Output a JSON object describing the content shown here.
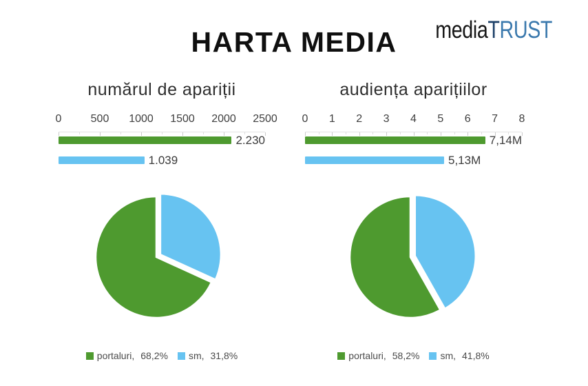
{
  "page": {
    "title": "HARTA MEDIA"
  },
  "logo": {
    "media": "media",
    "trust_first": "T",
    "trust_rest": "RUST",
    "media_color": "#161616",
    "trust_first_color": "#1d4068",
    "trust_rest_color": "#3b79ad"
  },
  "colors": {
    "green": "#4e9a2f",
    "blue": "#67c3f1"
  },
  "chart_data": [
    {
      "group": "numarul-de-aparitii",
      "title": "numărul de apariții",
      "bar": {
        "type": "bar",
        "orientation": "horizontal",
        "axis_ticks": [
          0,
          500,
          1000,
          1500,
          2000,
          2500
        ],
        "axis_max": 2500,
        "grid": "ticks-top",
        "series": [
          {
            "name": "portaluri",
            "value": 2230,
            "label": "2.230",
            "color_key": "green"
          },
          {
            "name": "sm",
            "value": 1039,
            "label": "1.039",
            "color_key": "blue"
          }
        ]
      },
      "pie": {
        "type": "pie",
        "start_angle_deg": 0,
        "direction": "counterclockwise",
        "slices": [
          {
            "name": "portaluri",
            "pct": 68.2,
            "label": "68,2%",
            "color_key": "green",
            "explode": 0
          },
          {
            "name": "sm",
            "pct": 31.8,
            "label": "31,8%",
            "color_key": "blue",
            "explode": 7
          }
        ]
      },
      "legend": [
        {
          "name": "portaluri,",
          "value": "68,2%",
          "color_key": "green"
        },
        {
          "name": "sm,",
          "value": "31,8%",
          "color_key": "blue"
        }
      ],
      "legend_position": "bottom-center"
    },
    {
      "group": "audienta-aparitiilor",
      "title": "audiența aparițiilor",
      "bar": {
        "type": "bar",
        "orientation": "horizontal",
        "axis_ticks": [
          0,
          1,
          2,
          3,
          4,
          5,
          6,
          7,
          8
        ],
        "axis_max": 8,
        "grid": "ticks-top",
        "series": [
          {
            "name": "portaluri",
            "value": 7.14,
            "label": "7,14M",
            "color_key": "green"
          },
          {
            "name": "sm",
            "value": 5.13,
            "label": "5,13M",
            "color_key": "blue"
          }
        ]
      },
      "pie": {
        "type": "pie",
        "start_angle_deg": 0,
        "direction": "counterclockwise",
        "slices": [
          {
            "name": "portaluri",
            "pct": 58.2,
            "label": "58,2%",
            "color_key": "green",
            "explode": 0
          },
          {
            "name": "sm",
            "pct": 41.8,
            "label": "41,8%",
            "color_key": "blue",
            "explode": 7
          }
        ]
      },
      "legend": [
        {
          "name": "portaluri,",
          "value": "58,2%",
          "color_key": "green"
        },
        {
          "name": "sm,",
          "value": "41,8%",
          "color_key": "blue"
        }
      ],
      "legend_position": "bottom-center"
    }
  ]
}
